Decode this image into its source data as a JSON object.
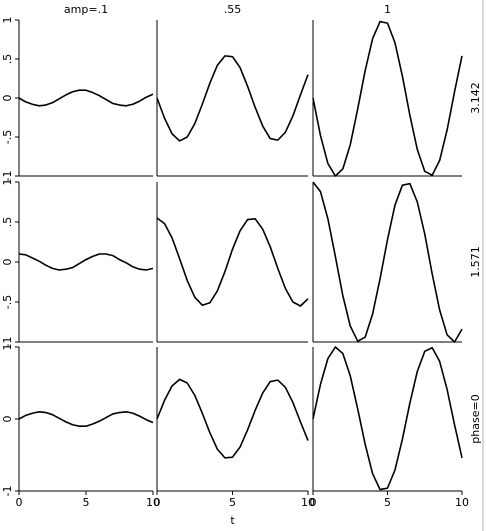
{
  "chart_data": [
    {
      "type": "line",
      "title": "amp=.1",
      "xlim": [
        0,
        10
      ],
      "ylim": [
        -1,
        1
      ],
      "yticks": [
        {
          "value": -1,
          "label": "-1"
        },
        {
          "value": -0.5,
          "label": "-.5"
        },
        0,
        {
          "value": 0.5,
          "label": ".5"
        },
        1
      ],
      "x": [
        0,
        0.5,
        1,
        1.5,
        2,
        2.5,
        3,
        3.5,
        4,
        4.5,
        5,
        5.5,
        6,
        6.5,
        7,
        7.5,
        8,
        8.5,
        9,
        9.5,
        10
      ],
      "values": [
        0,
        -0.05,
        -0.08,
        -0.1,
        -0.09,
        -0.06,
        -0.01,
        0.04,
        0.08,
        0.1,
        0.1,
        0.07,
        0.03,
        -0.02,
        -0.07,
        -0.09,
        -0.1,
        -0.08,
        -0.04,
        0.01,
        0.05
      ]
    },
    {
      "type": "line",
      "title": ".55",
      "xlim": [
        0,
        10
      ],
      "ylim": [
        -1,
        1
      ],
      "x": [
        0,
        0.5,
        1,
        1.5,
        2,
        2.5,
        3,
        3.5,
        4,
        4.5,
        5,
        5.5,
        6,
        6.5,
        7,
        7.5,
        8,
        8.5,
        9,
        9.5,
        10
      ],
      "values": [
        0,
        -0.26,
        -0.46,
        -0.55,
        -0.5,
        -0.33,
        -0.08,
        0.19,
        0.42,
        0.54,
        0.53,
        0.39,
        0.15,
        -0.12,
        -0.36,
        -0.52,
        -0.54,
        -0.44,
        -0.23,
        0.04,
        0.3
      ]
    },
    {
      "type": "line",
      "title": "1",
      "row_label": "3.142",
      "xlim": [
        0,
        10
      ],
      "ylim": [
        -1,
        1
      ],
      "x": [
        0,
        0.5,
        1,
        1.5,
        2,
        2.5,
        3,
        3.5,
        4,
        4.5,
        5,
        5.5,
        6,
        6.5,
        7,
        7.5,
        8,
        8.5,
        9,
        9.5,
        10
      ],
      "values": [
        0,
        -0.48,
        -0.84,
        -1,
        -0.91,
        -0.6,
        -0.14,
        0.35,
        0.76,
        0.98,
        0.96,
        0.71,
        0.28,
        -0.22,
        -0.66,
        -0.94,
        -0.99,
        -0.8,
        -0.41,
        0.08,
        0.54
      ]
    },
    {
      "type": "line",
      "xlim": [
        0,
        10
      ],
      "ylim": [
        -1,
        1
      ],
      "yticks": [
        {
          "value": -1,
          "label": "-1"
        },
        {
          "value": -0.5,
          "label": "-.5"
        },
        0,
        {
          "value": 0.5,
          "label": ".5"
        },
        1
      ],
      "x": [
        0,
        0.5,
        1,
        1.5,
        2,
        2.5,
        3,
        3.5,
        4,
        4.5,
        5,
        5.5,
        6,
        6.5,
        7,
        7.5,
        8,
        8.5,
        9,
        9.5,
        10
      ],
      "values": [
        0.1,
        0.09,
        0.05,
        0.01,
        -0.04,
        -0.08,
        -0.1,
        -0.09,
        -0.07,
        -0.02,
        0.03,
        0.07,
        0.1,
        0.1,
        0.08,
        0.03,
        -0.01,
        -0.06,
        -0.09,
        -0.1,
        -0.08
      ]
    },
    {
      "type": "line",
      "xlim": [
        0,
        10
      ],
      "ylim": [
        -1,
        1
      ],
      "x": [
        0,
        0.5,
        1,
        1.5,
        2,
        2.5,
        3,
        3.5,
        4,
        4.5,
        5,
        5.5,
        6,
        6.5,
        7,
        7.5,
        8,
        8.5,
        9,
        9.5,
        10
      ],
      "values": [
        0.55,
        0.48,
        0.3,
        0.04,
        -0.23,
        -0.44,
        -0.54,
        -0.51,
        -0.36,
        -0.12,
        0.16,
        0.39,
        0.53,
        0.54,
        0.41,
        0.19,
        -0.08,
        -0.33,
        -0.5,
        -0.55,
        -0.46
      ]
    },
    {
      "type": "line",
      "row_label": "1.571",
      "xlim": [
        0,
        10
      ],
      "ylim": [
        -1,
        1
      ],
      "x": [
        0,
        0.5,
        1,
        1.5,
        2,
        2.5,
        3,
        3.5,
        4,
        4.5,
        5,
        5.5,
        6,
        6.5,
        7,
        7.5,
        8,
        8.5,
        9,
        9.5,
        10
      ],
      "values": [
        1,
        0.88,
        0.54,
        0.07,
        -0.42,
        -0.8,
        -0.99,
        -0.94,
        -0.65,
        -0.21,
        0.28,
        0.71,
        0.96,
        0.98,
        0.75,
        0.35,
        -0.15,
        -0.6,
        -0.91,
        -1,
        -0.84
      ]
    },
    {
      "type": "line",
      "xlim": [
        0,
        10
      ],
      "ylim": [
        -1,
        1
      ],
      "yticks": [
        {
          "value": -1,
          "label": "-1"
        },
        0,
        1
      ],
      "xticks": [
        0,
        5,
        10
      ],
      "x": [
        0,
        0.5,
        1,
        1.5,
        2,
        2.5,
        3,
        3.5,
        4,
        4.5,
        5,
        5.5,
        6,
        6.5,
        7,
        7.5,
        8,
        8.5,
        9,
        9.5,
        10
      ],
      "values": [
        0,
        0.05,
        0.08,
        0.1,
        0.09,
        0.06,
        0.01,
        -0.04,
        -0.08,
        -0.1,
        -0.1,
        -0.07,
        -0.03,
        0.02,
        0.07,
        0.09,
        0.1,
        0.08,
        0.04,
        -0.01,
        -0.05
      ]
    },
    {
      "type": "line",
      "xlabel": "t",
      "xlim": [
        0,
        10
      ],
      "ylim": [
        -1,
        1
      ],
      "xticks": [
        0,
        5,
        10
      ],
      "x": [
        0,
        0.5,
        1,
        1.5,
        2,
        2.5,
        3,
        3.5,
        4,
        4.5,
        5,
        5.5,
        6,
        6.5,
        7,
        7.5,
        8,
        8.5,
        9,
        9.5,
        10
      ],
      "values": [
        0,
        0.26,
        0.46,
        0.55,
        0.5,
        0.33,
        0.08,
        -0.19,
        -0.42,
        -0.54,
        -0.53,
        -0.39,
        -0.15,
        0.12,
        0.36,
        0.52,
        0.54,
        0.44,
        0.23,
        -0.04,
        -0.3
      ]
    },
    {
      "type": "line",
      "row_label": "phase=0",
      "xlim": [
        0,
        10
      ],
      "ylim": [
        -1,
        1
      ],
      "xticks": [
        0,
        5,
        10
      ],
      "x": [
        0,
        0.5,
        1,
        1.5,
        2,
        2.5,
        3,
        3.5,
        4,
        4.5,
        5,
        5.5,
        6,
        6.5,
        7,
        7.5,
        8,
        8.5,
        9,
        9.5,
        10
      ],
      "values": [
        0,
        0.48,
        0.84,
        1,
        0.91,
        0.6,
        0.14,
        -0.35,
        -0.76,
        -0.98,
        -0.96,
        -0.71,
        -0.28,
        0.22,
        0.66,
        0.94,
        0.99,
        0.8,
        0.41,
        -0.08,
        -0.54
      ]
    }
  ]
}
